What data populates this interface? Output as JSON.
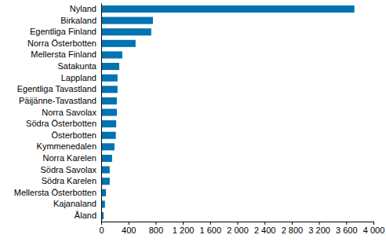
{
  "chart_data": {
    "type": "bar",
    "orientation": "horizontal",
    "categories": [
      "Nyland",
      "Birkaland",
      "Egentliga Finland",
      "Norra Österbotten",
      "Mellersta Finland",
      "Satakunta",
      "Lappland",
      "Egentliga Tavastland",
      "Päijänne-Tavastland",
      "Norra Savolax",
      "Södra Österbotten",
      "Österbotten",
      "Kymmenedalen",
      "Norra Karelen",
      "Södra Savolax",
      "Södra Karelen",
      "Mellersta Österbotten",
      "Kajanaland",
      "Åland"
    ],
    "values": [
      3720,
      760,
      735,
      505,
      310,
      265,
      240,
      240,
      230,
      230,
      220,
      215,
      195,
      160,
      125,
      125,
      70,
      55,
      35
    ],
    "color": "#0073b0",
    "xlim": [
      0,
      4000
    ],
    "xticks": [
      0,
      400,
      800,
      {
        "value": 1200,
        "label": "1 200"
      },
      {
        "value": 1600,
        "label": "1 600"
      },
      {
        "value": 2000,
        "label": "2 000"
      },
      {
        "value": 2400,
        "label": "2 400"
      },
      {
        "value": 2800,
        "label": "2 800"
      },
      {
        "value": 3200,
        "label": "3 200"
      },
      {
        "value": 3600,
        "label": "3 600"
      },
      {
        "value": 4000,
        "label": "4 000"
      }
    ],
    "grid": false
  }
}
